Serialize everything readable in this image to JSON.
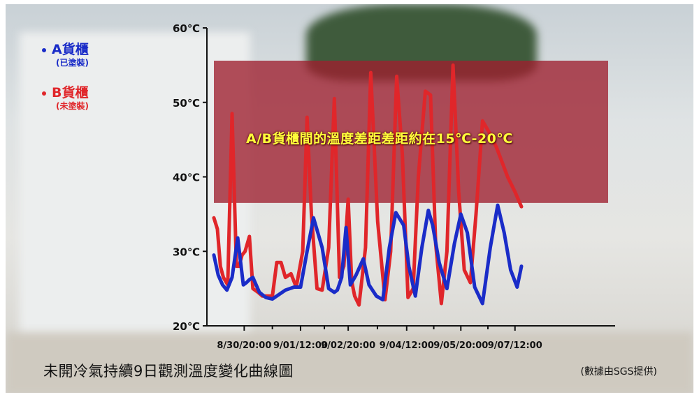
{
  "chart_data": {
    "type": "line",
    "title": "未開冷氣持續9日觀測溫度變化曲線圖",
    "source_note": "(數據由SGS提供)",
    "annotation": "A/B貨櫃間的溫度差距差距約在15℃-20℃",
    "legend_placement": "top-left",
    "ylim": [
      20,
      60
    ],
    "yticks": [
      "20℃",
      "30℃",
      "40℃",
      "50℃",
      "60℃"
    ],
    "ytick_values": [
      20,
      30,
      40,
      50,
      60
    ],
    "xlim": [
      0,
      9.1
    ],
    "xtick_labels": [
      "8/30/20:00",
      "9/01/12:00",
      "9/02/20:00",
      "9/04/12:00",
      "9/05/20:00",
      "9/07/12:00"
    ],
    "xtick_positions": [
      0.7,
      2.0,
      3.1,
      4.45,
      5.7,
      6.95
    ],
    "band": {
      "from": 36.5,
      "to": 55.6,
      "color": "#9e1f2e"
    },
    "series": [
      {
        "name": "A貨櫃",
        "note": "(已塗裝)",
        "color": "#1a2cc8",
        "x": [
          0,
          0.1,
          0.2,
          0.3,
          0.42,
          0.55,
          0.68,
          0.75,
          0.82,
          0.9,
          1.05,
          1.2,
          1.35,
          1.5,
          1.65,
          1.85,
          2.0,
          2.15,
          2.3,
          2.5,
          2.65,
          2.78,
          2.85,
          2.95,
          3.05,
          3.15,
          3.28,
          3.45,
          3.58,
          3.75,
          3.9,
          4.05,
          4.2,
          4.38,
          4.5,
          4.65,
          4.8,
          4.95,
          5.05,
          5.2,
          5.38,
          5.55,
          5.7,
          5.85,
          6.02,
          6.2,
          6.38,
          6.55,
          6.7,
          6.85,
          7.0,
          7.1
        ],
        "values": [
          29.5,
          26.8,
          25.5,
          24.8,
          26.5,
          31.8,
          25.5,
          25.8,
          26.2,
          26.5,
          24.5,
          23.8,
          23.6,
          24.2,
          24.8,
          25.2,
          25.2,
          30,
          34.5,
          30.5,
          25,
          24.5,
          24.8,
          26.5,
          33.2,
          25.5,
          26.8,
          29,
          25.5,
          24,
          23.5,
          30.5,
          35.2,
          33.5,
          28,
          24,
          30.5,
          35.5,
          33.5,
          28.5,
          25,
          31,
          35,
          32.5,
          25.2,
          23,
          30.5,
          36.2,
          32.5,
          27.5,
          25.2,
          28
        ]
      },
      {
        "name": "B貨櫃",
        "note": "(未塗裝)",
        "color": "#e0262a",
        "x": [
          0,
          0.08,
          0.15,
          0.22,
          0.32,
          0.42,
          0.52,
          0.58,
          0.65,
          0.72,
          0.82,
          0.9,
          1.02,
          1.12,
          1.22,
          1.35,
          1.45,
          1.55,
          1.65,
          1.78,
          1.9,
          2.05,
          2.15,
          2.25,
          2.38,
          2.5,
          2.65,
          2.78,
          2.9,
          3.0,
          3.1,
          3.18,
          3.25,
          3.35,
          3.5,
          3.62,
          3.78,
          3.95,
          4.08,
          4.22,
          4.35,
          4.48,
          4.6,
          4.72,
          4.88,
          5.0,
          5.12,
          5.25,
          5.38,
          5.52,
          5.65,
          5.78,
          5.92,
          6.05,
          6.2,
          6.35,
          6.52,
          6.65,
          6.78,
          6.95,
          7.1
        ],
        "values": [
          34.5,
          33,
          28,
          26.5,
          25.5,
          48.5,
          28,
          28,
          29.5,
          30,
          32,
          25,
          24.5,
          24,
          24,
          24,
          28.5,
          28.5,
          26.5,
          27,
          25.2,
          30,
          48,
          35,
          25,
          24.8,
          30.5,
          50.5,
          26.5,
          28,
          37,
          26,
          24,
          22.8,
          30.5,
          54,
          34,
          23.5,
          30,
          53.5,
          43,
          23.8,
          25,
          40,
          51.5,
          51,
          31,
          23,
          30,
          55,
          38,
          27.5,
          25.8,
          35,
          47.5,
          46,
          44,
          42,
          40,
          38,
          36
        ]
      }
    ]
  }
}
